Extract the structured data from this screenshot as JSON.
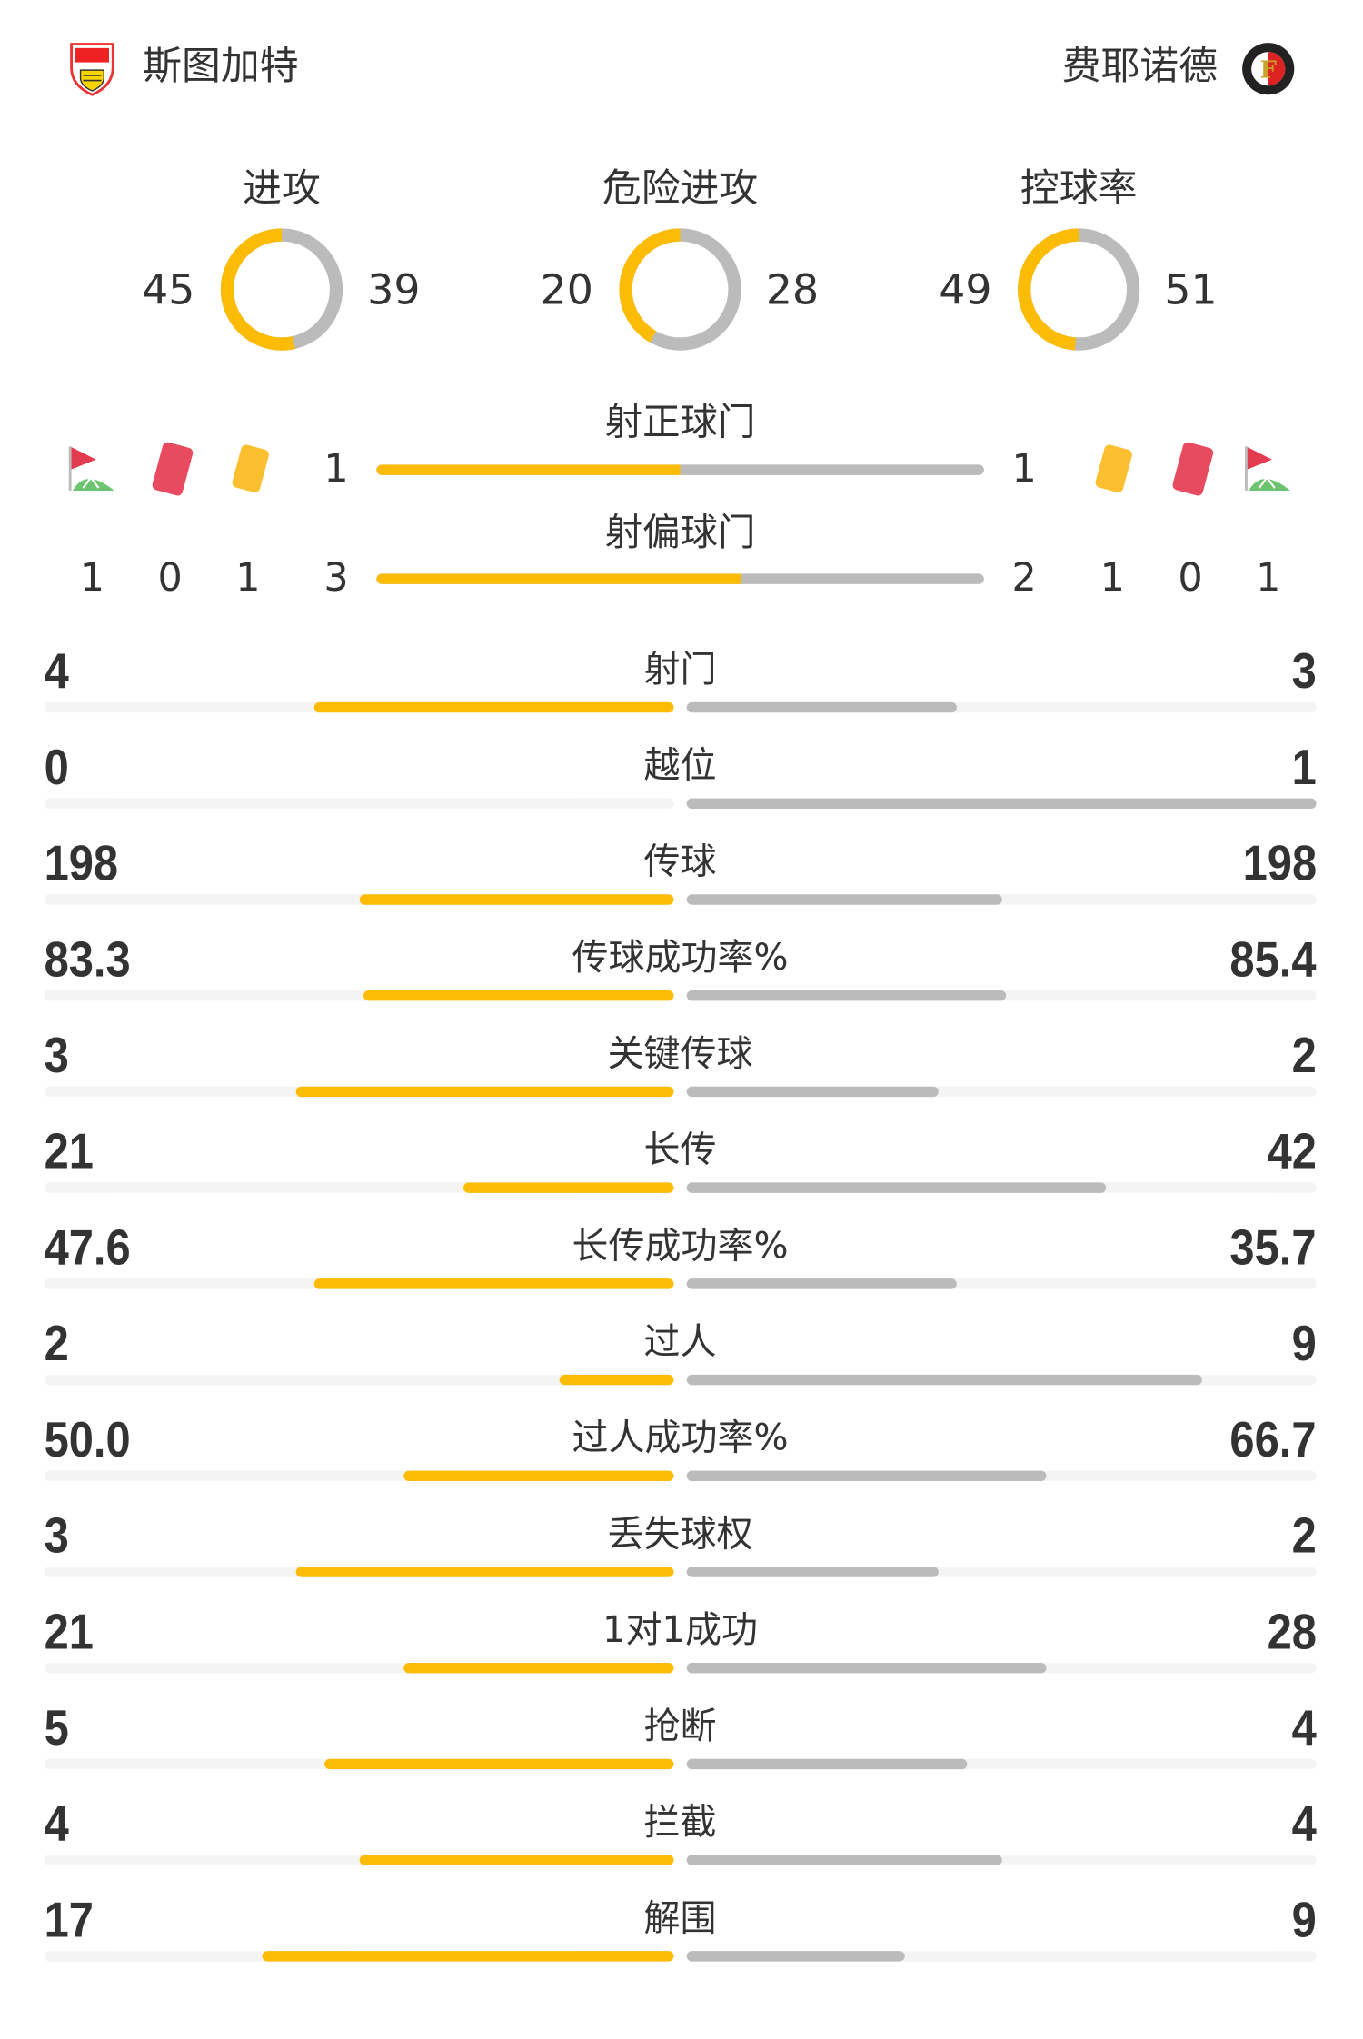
{
  "colors": {
    "home": "#fcbc05",
    "away": "#bbbbbb",
    "track": "#f4f4f4"
  },
  "header": {
    "home": {
      "name": "斯图加特",
      "logo": "vfb-stuttgart-crest"
    },
    "away": {
      "name": "费耶诺德",
      "logo": "feyenoord-crest"
    }
  },
  "donuts": [
    {
      "label": "进攻",
      "home": 45,
      "away": 39
    },
    {
      "label": "危险进攻",
      "home": 20,
      "away": 28
    },
    {
      "label": "控球率",
      "home": 49,
      "away": 51
    }
  ],
  "shots_on": {
    "label": "射正球门",
    "home": 1,
    "away": 1
  },
  "shots_off": {
    "label": "射偏球门",
    "home": 3,
    "away": 2
  },
  "events": {
    "home": {
      "corners": 1,
      "red_cards": 0,
      "yellow_cards": 1
    },
    "away": {
      "yellow_cards": 1,
      "red_cards": 0,
      "corners": 1
    },
    "icons": [
      "corner-flag-icon",
      "red-card-icon",
      "yellow-card-icon"
    ]
  },
  "stats": [
    {
      "label": "射门",
      "home": "4",
      "away": "3"
    },
    {
      "label": "越位",
      "home": "0",
      "away": "1"
    },
    {
      "label": "传球",
      "home": "198",
      "away": "198"
    },
    {
      "label": "传球成功率%",
      "home": "83.3",
      "away": "85.4"
    },
    {
      "label": "关键传球",
      "home": "3",
      "away": "2"
    },
    {
      "label": "长传",
      "home": "21",
      "away": "42"
    },
    {
      "label": "长传成功率%",
      "home": "47.6",
      "away": "35.7"
    },
    {
      "label": "过人",
      "home": "2",
      "away": "9"
    },
    {
      "label": "过人成功率%",
      "home": "50.0",
      "away": "66.7"
    },
    {
      "label": "丢失球权",
      "home": "3",
      "away": "2"
    },
    {
      "label": "1对1成功",
      "home": "21",
      "away": "28"
    },
    {
      "label": "抢断",
      "home": "5",
      "away": "4"
    },
    {
      "label": "拦截",
      "home": "4",
      "away": "4"
    },
    {
      "label": "解围",
      "home": "17",
      "away": "9"
    }
  ]
}
